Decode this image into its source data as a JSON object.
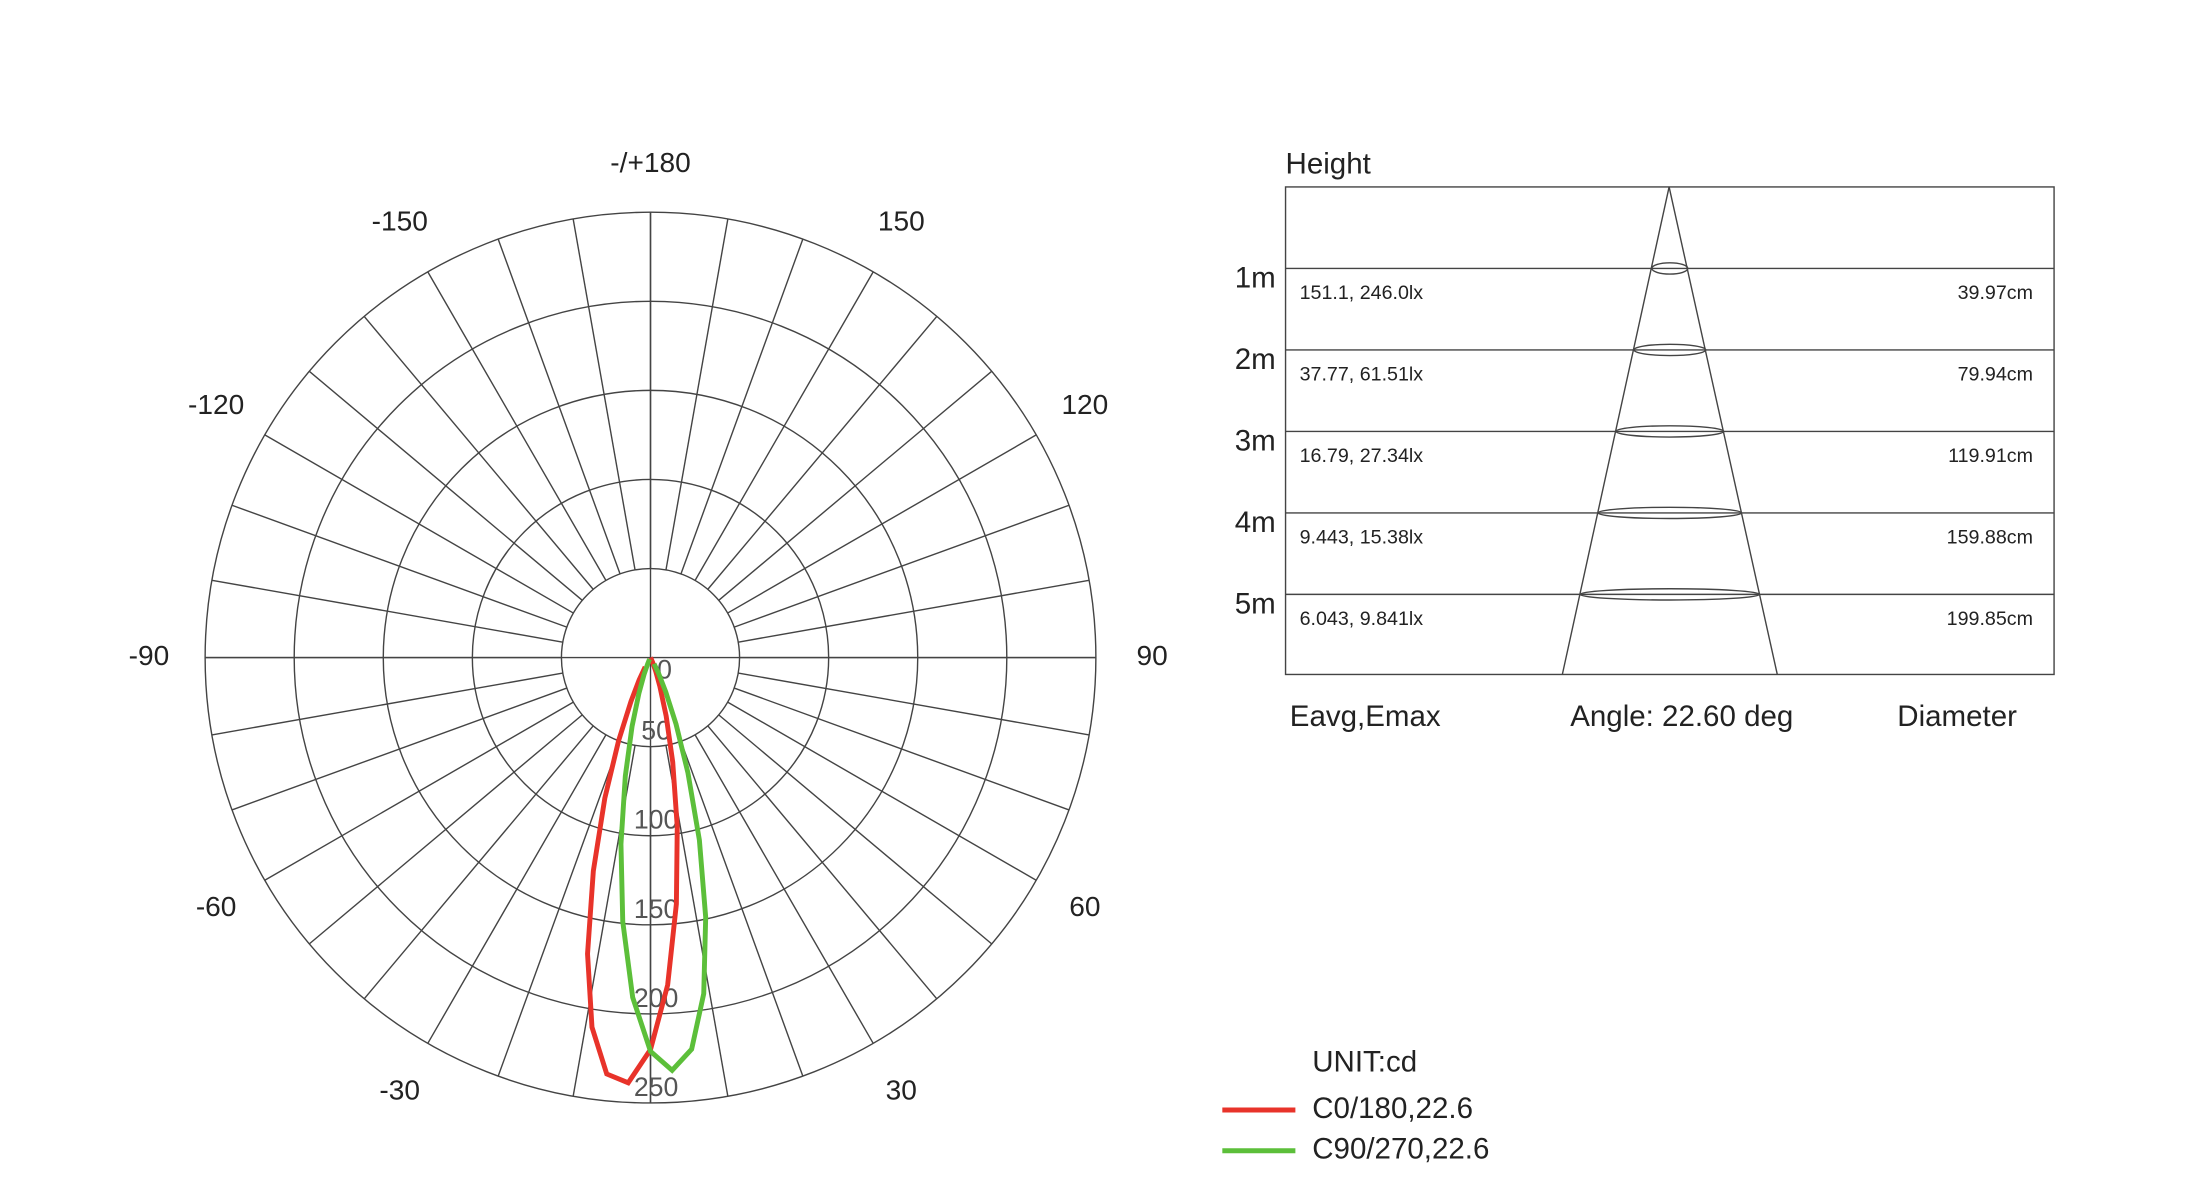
{
  "chart_data": {
    "type": "polar",
    "unit_label": "UNIT:cd",
    "angle_ticks": [
      {
        "value": 180,
        "label": "-/+180"
      },
      -150,
      150,
      -120,
      120,
      -90,
      90,
      -60,
      60,
      -30,
      30
    ],
    "rlim": [
      0,
      250
    ],
    "rticks": [
      0,
      50,
      100,
      150,
      200,
      250
    ],
    "x": [
      -30,
      -27,
      -24,
      -21,
      -18,
      -15,
      -12,
      -9,
      -6,
      -3,
      0,
      3,
      6,
      9,
      12,
      15,
      18,
      21,
      24,
      27,
      30
    ],
    "series": [
      {
        "name": "C0/180,22.6",
        "color": "#e8332a",
        "values": [
          6,
          14,
          27,
          50,
          83,
          124,
          170,
          210,
          235,
          239,
          220,
          184,
          139,
          96,
          60,
          34,
          17,
          8,
          3,
          1,
          0
        ]
      },
      {
        "name": "C90/270,22.6",
        "color": "#5cbf3a",
        "values": [
          1,
          2,
          4,
          10,
          21,
          40,
          68,
          106,
          149,
          191,
          221,
          232,
          221,
          191,
          149,
          106,
          68,
          40,
          21,
          10,
          4
        ]
      }
    ]
  },
  "table": {
    "height_label": "Height",
    "rows": [
      {
        "height": "1m",
        "lux": "151.1,  246.0lx",
        "diameter": "39.97cm"
      },
      {
        "height": "2m",
        "lux": "37.77,  61.51lx",
        "diameter": "79.94cm"
      },
      {
        "height": "3m",
        "lux": "16.79,  27.34lx",
        "diameter": "119.91cm"
      },
      {
        "height": "4m",
        "lux": "9.443,  15.38lx",
        "diameter": "159.88cm"
      },
      {
        "height": "5m",
        "lux": "6.043,  9.841lx",
        "diameter": "199.85cm"
      }
    ],
    "footer": [
      "Eavg,Emax",
      "Angle: 22.60 deg",
      "Diameter"
    ]
  }
}
